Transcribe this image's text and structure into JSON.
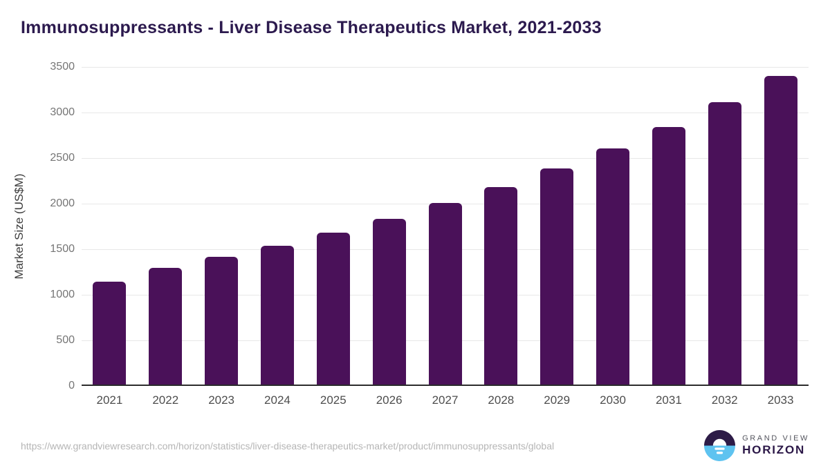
{
  "chart_data": {
    "type": "bar",
    "title": "Immunosuppressants - Liver Disease Therapeutics Market, 2021-2033",
    "xlabel": "",
    "ylabel": "Market Size (US$M)",
    "categories": [
      "2021",
      "2022",
      "2023",
      "2024",
      "2025",
      "2026",
      "2027",
      "2028",
      "2029",
      "2030",
      "2031",
      "2032",
      "2033"
    ],
    "values": [
      1130,
      1280,
      1405,
      1525,
      1670,
      1820,
      1990,
      2170,
      2370,
      2590,
      2825,
      3095,
      3390
    ],
    "ylim": [
      0,
      3500
    ],
    "yticks": [
      0,
      500,
      1000,
      1500,
      2000,
      2500,
      3000,
      3500
    ],
    "grid": "horizontal",
    "legend": "none"
  },
  "colors": {
    "bar": "#4a1159",
    "title": "#2c1a4e",
    "gridline": "#e7e7e7",
    "axis_line": "#2b2b2b",
    "logo_purple": "#2d1b47",
    "logo_blue": "#5ec3f0"
  },
  "footer": {
    "source_url": "https://www.grandviewresearch.com/horizon/statistics/liver-disease-therapeutics-market/product/immunosuppressants/global",
    "logo": {
      "line1": "GRAND VIEW",
      "line2": "HORIZON"
    }
  }
}
